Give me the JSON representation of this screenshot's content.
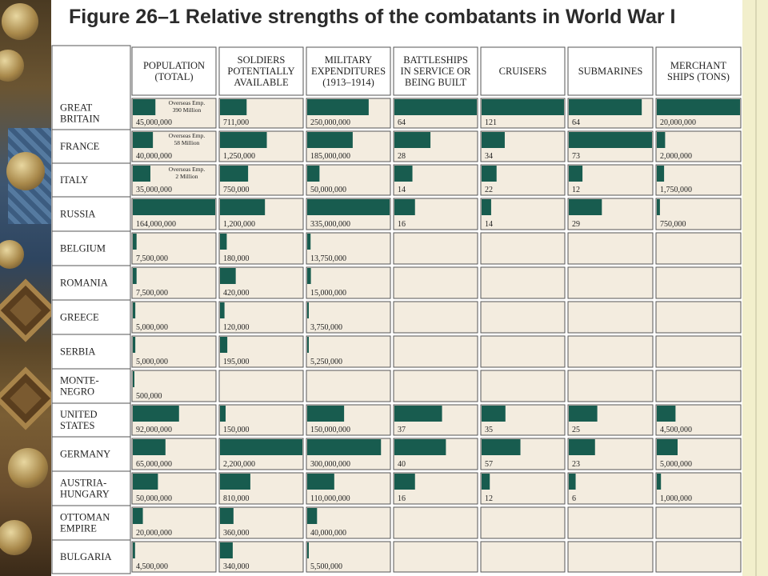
{
  "title": "Figure 26–1 Relative strengths of the combatants in World War I",
  "colors": {
    "bar": "#185c4f",
    "cell": "#f3ecdf",
    "grid": "#555555",
    "header_bg": "#ffffff"
  },
  "chart_data": {
    "type": "table",
    "title": "Figure 26–1 Relative strengths of the combatants in World War I",
    "columns": [
      {
        "lines": [
          "POPULATION",
          "(TOTAL)"
        ],
        "max": 164000000
      },
      {
        "lines": [
          "SOLDIERS",
          "POTENTIALLY",
          "AVAILABLE"
        ],
        "max": 2200000
      },
      {
        "lines": [
          "MILITARY",
          "EXPENDITURES",
          "(1913–1914)"
        ],
        "max": 335000000
      },
      {
        "lines": [
          "BATTLESHIPS",
          "IN SERVICE OR",
          "BEING BUILT"
        ],
        "max": 64
      },
      {
        "lines": [
          "CRUISERS"
        ],
        "max": 121
      },
      {
        "lines": [
          "SUBMARINES"
        ],
        "max": 73
      },
      {
        "lines": [
          "MERCHANT",
          "SHIPS (TONS)"
        ],
        "max": 20000000
      }
    ],
    "rows": [
      {
        "country": [
          "GREAT",
          "BRITAIN"
        ],
        "values": [
          45000000,
          711000,
          250000000,
          64,
          121,
          64,
          20000000
        ],
        "labels": [
          "45,000,000",
          "711,000",
          "250,000,000",
          "64",
          "121",
          "64",
          "20,000,000"
        ],
        "note": [
          "Overseas Emp.",
          "390 Million"
        ]
      },
      {
        "country": [
          "FRANCE"
        ],
        "values": [
          40000000,
          1250000,
          185000000,
          28,
          34,
          73,
          2000000
        ],
        "labels": [
          "40,000,000",
          "1,250,000",
          "185,000,000",
          "28",
          "34",
          "73",
          "2,000,000"
        ],
        "note": [
          "Overseas Emp.",
          "58 Million"
        ]
      },
      {
        "country": [
          "ITALY"
        ],
        "values": [
          35000000,
          750000,
          50000000,
          14,
          22,
          12,
          1750000
        ],
        "labels": [
          "35,000,000",
          "750,000",
          "50,000,000",
          "14",
          "22",
          "12",
          "1,750,000"
        ],
        "note": [
          "Overseas Emp.",
          "2 Million"
        ]
      },
      {
        "country": [
          "RUSSIA"
        ],
        "values": [
          164000000,
          1200000,
          335000000,
          16,
          14,
          29,
          750000
        ],
        "labels": [
          "164,000,000",
          "1,200,000",
          "335,000,000",
          "16",
          "14",
          "29",
          "750,000"
        ]
      },
      {
        "country": [
          "BELGIUM"
        ],
        "values": [
          7500000,
          180000,
          13750000,
          null,
          null,
          null,
          null
        ],
        "labels": [
          "7,500,000",
          "180,000",
          "13,750,000",
          "",
          "",
          "",
          ""
        ]
      },
      {
        "country": [
          "ROMANIA"
        ],
        "values": [
          7500000,
          420000,
          15000000,
          null,
          null,
          null,
          null
        ],
        "labels": [
          "7,500,000",
          "420,000",
          "15,000,000",
          "",
          "",
          "",
          ""
        ]
      },
      {
        "country": [
          "GREECE"
        ],
        "values": [
          5000000,
          120000,
          3750000,
          null,
          null,
          null,
          null
        ],
        "labels": [
          "5,000,000",
          "120,000",
          "3,750,000",
          "",
          "",
          "",
          ""
        ]
      },
      {
        "country": [
          "SERBIA"
        ],
        "values": [
          5000000,
          195000,
          5250000,
          null,
          null,
          null,
          null
        ],
        "labels": [
          "5,000,000",
          "195,000",
          "5,250,000",
          "",
          "",
          "",
          ""
        ]
      },
      {
        "country": [
          "MONTE-",
          "NEGRO"
        ],
        "values": [
          500000,
          null,
          null,
          null,
          null,
          null,
          null
        ],
        "labels": [
          "500,000",
          "",
          "",
          "",
          "",
          "",
          ""
        ]
      },
      {
        "country": [
          "UNITED",
          "STATES"
        ],
        "values": [
          92000000,
          150000,
          150000000,
          37,
          35,
          25,
          4500000
        ],
        "labels": [
          "92,000,000",
          "150,000",
          "150,000,000",
          "37",
          "35",
          "25",
          "4,500,000"
        ]
      },
      {
        "country": [
          "GERMANY"
        ],
        "values": [
          65000000,
          2200000,
          300000000,
          40,
          57,
          23,
          5000000
        ],
        "labels": [
          "65,000,000",
          "2,200,000",
          "300,000,000",
          "40",
          "57",
          "23",
          "5,000,000"
        ]
      },
      {
        "country": [
          "AUSTRIA-",
          "HUNGARY"
        ],
        "values": [
          50000000,
          810000,
          110000000,
          16,
          12,
          6,
          1000000
        ],
        "labels": [
          "50,000,000",
          "810,000",
          "110,000,000",
          "16",
          "12",
          "6",
          "1,000,000"
        ]
      },
      {
        "country": [
          "OTTOMAN",
          "EMPIRE"
        ],
        "values": [
          20000000,
          360000,
          40000000,
          null,
          null,
          null,
          null
        ],
        "labels": [
          "20,000,000",
          "360,000",
          "40,000,000",
          "",
          "",
          "",
          ""
        ]
      },
      {
        "country": [
          "BULGARIA"
        ],
        "values": [
          4500000,
          340000,
          5500000,
          null,
          null,
          null,
          null
        ],
        "labels": [
          "4,500,000",
          "340,000",
          "5,500,000",
          "",
          "",
          "",
          ""
        ]
      }
    ]
  }
}
